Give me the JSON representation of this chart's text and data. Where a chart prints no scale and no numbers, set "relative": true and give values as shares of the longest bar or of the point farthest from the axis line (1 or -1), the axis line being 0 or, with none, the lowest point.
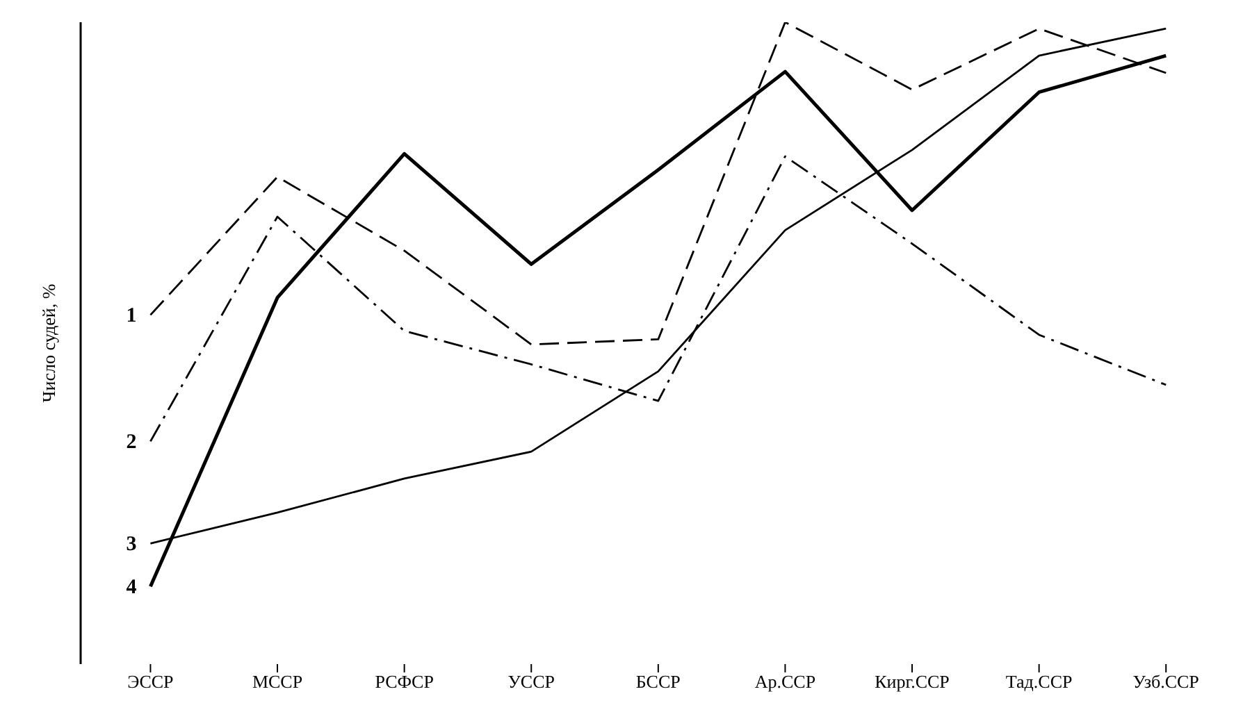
{
  "chart_data": {
    "type": "line",
    "ylabel": "Число судей, %",
    "relative": true,
    "legend": false,
    "grid": false,
    "marker": "none",
    "categories": [
      "ЭССР",
      "МССР",
      "РСФСР",
      "УССР",
      "БССР",
      "Ар.ССР",
      "Кирг.ССР",
      "Тад.ССР",
      "Узб.ССР"
    ],
    "series": [
      {
        "name": "1",
        "color": "#000000",
        "line_style": "dashed",
        "values": [
          0.544,
          0.759,
          0.644,
          0.498,
          0.506,
          1,
          0.895,
          0.99,
          0.921
        ]
      },
      {
        "name": "2",
        "color": "#000000",
        "line_style": "dashdot",
        "values": [
          0.347,
          0.697,
          0.519,
          0.467,
          0.41,
          0.791,
          0.655,
          0.513,
          0.435
        ]
      },
      {
        "name": "3",
        "color": "#000000",
        "line_style": "solid",
        "values": [
          0.188,
          0.236,
          0.289,
          0.331,
          0.456,
          0.676,
          0.801,
          0.948,
          0.99
        ]
      },
      {
        "name": "4",
        "color": "#000000",
        "line_style": "solid",
        "values": [
          0.121,
          0.571,
          0.795,
          0.623,
          0.77,
          0.923,
          0.707,
          0.891,
          0.948
        ]
      }
    ]
  }
}
